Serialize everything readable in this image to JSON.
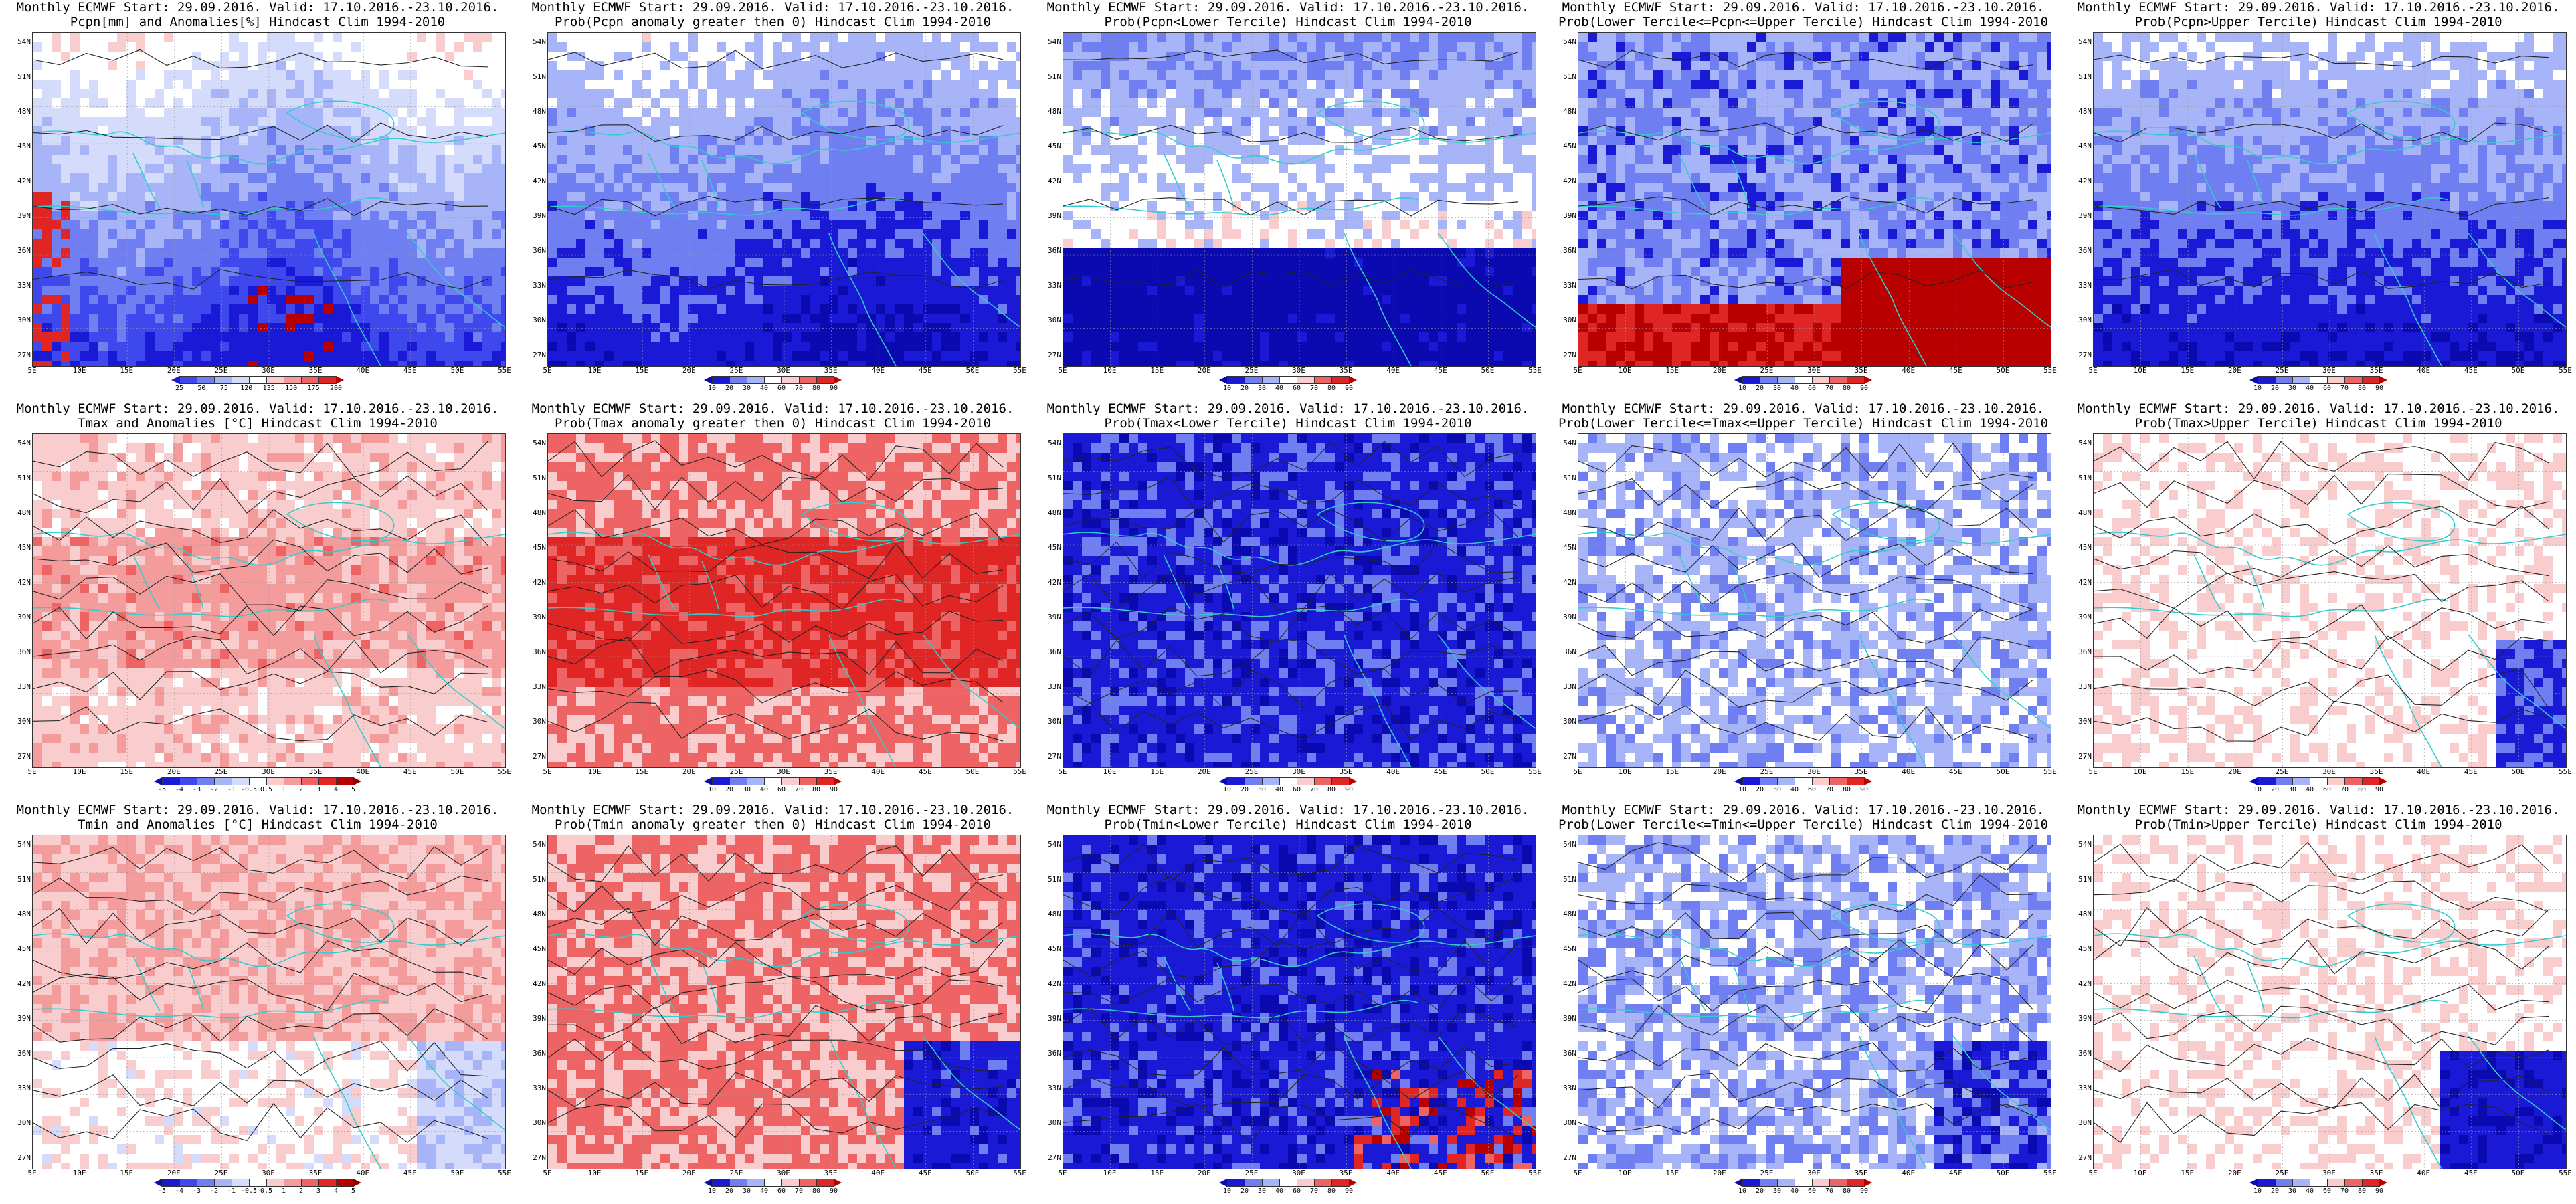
{
  "panels": [
    {
      "line1": "Monthly ECMWF Start: 29.09.2016. Valid: 17.10.2016.-23.10.2016.",
      "line2": "Pcpn[mm] and Anomalies[%] Hindcast Clim 1994-2010",
      "scale": "anom_pcpn",
      "pattern": "pcpn_anom"
    },
    {
      "line1": "Monthly ECMWF Start: 29.09.2016. Valid: 17.10.2016.-23.10.2016.",
      "line2": "Prob(Pcpn anomaly greater then 0) Hindcast Clim 1994-2010",
      "scale": "prob",
      "pattern": "pcpn_prob"
    },
    {
      "line1": "Monthly ECMWF Start: 29.09.2016. Valid: 17.10.2016.-23.10.2016.",
      "line2": "Prob(Pcpn<Lower Tercile) Hindcast Clim 1994-2010",
      "scale": "prob",
      "pattern": "pcpn_lower"
    },
    {
      "line1": "Monthly ECMWF Start: 29.09.2016. Valid: 17.10.2016.-23.10.2016.",
      "line2": "Prob(Lower Tercile<=Pcpn<=Upper Tercile) Hindcast Clim 1994-2010",
      "scale": "prob",
      "pattern": "pcpn_middle"
    },
    {
      "line1": "Monthly ECMWF Start: 29.09.2016. Valid: 17.10.2016.-23.10.2016.",
      "line2": "Prob(Pcpn>Upper Tercile) Hindcast Clim 1994-2010",
      "scale": "prob",
      "pattern": "pcpn_upper"
    },
    {
      "line1": "Monthly ECMWF Start: 29.09.2016. Valid: 17.10.2016.-23.10.2016.",
      "line2": "Tmax and Anomalies [°C] Hindcast Clim 1994-2010",
      "scale": "anom_t",
      "pattern": "t_anom"
    },
    {
      "line1": "Monthly ECMWF Start: 29.09.2016. Valid: 17.10.2016.-23.10.2016.",
      "line2": "Prob(Tmax anomaly greater then 0) Hindcast Clim 1994-2010",
      "scale": "prob",
      "pattern": "t_prob"
    },
    {
      "line1": "Monthly ECMWF Start: 29.09.2016. Valid: 17.10.2016.-23.10.2016.",
      "line2": "Prob(Tmax<Lower Tercile) Hindcast Clim 1994-2010",
      "scale": "prob",
      "pattern": "t_lower"
    },
    {
      "line1": "Monthly ECMWF Start: 29.09.2016. Valid: 17.10.2016.-23.10.2016.",
      "line2": "Prob(Lower Tercile<=Tmax<=Upper Tercile) Hindcast Clim 1994-2010",
      "scale": "prob",
      "pattern": "t_middle"
    },
    {
      "line1": "Monthly ECMWF Start: 29.09.2016. Valid: 17.10.2016.-23.10.2016.",
      "line2": "Prob(Tmax>Upper Tercile) Hindcast Clim 1994-2010",
      "scale": "prob",
      "pattern": "t_upper"
    },
    {
      "line1": "Monthly ECMWF Start: 29.09.2016. Valid: 17.10.2016.-23.10.2016.",
      "line2": "Tmin and Anomalies [°C] Hindcast Clim 1994-2010",
      "scale": "anom_t",
      "pattern": "tmin_anom"
    },
    {
      "line1": "Monthly ECMWF Start: 29.09.2016. Valid: 17.10.2016.-23.10.2016.",
      "line2": "Prob(Tmin anomaly greater then 0) Hindcast Clim 1994-2010",
      "scale": "prob",
      "pattern": "tmin_prob"
    },
    {
      "line1": "Monthly ECMWF Start: 29.09.2016. Valid: 17.10.2016.-23.10.2016.",
      "line2": "Prob(Tmin<Lower Tercile) Hindcast Clim 1994-2010",
      "scale": "prob",
      "pattern": "tmin_lower"
    },
    {
      "line1": "Monthly ECMWF Start: 29.09.2016. Valid: 17.10.2016.-23.10.2016.",
      "line2": "Prob(Lower Tercile<=Tmin<=Upper Tercile) Hindcast Clim 1994-2010",
      "scale": "prob",
      "pattern": "tmin_middle"
    },
    {
      "line1": "Monthly ECMWF Start: 29.09.2016. Valid: 17.10.2016.-23.10.2016.",
      "line2": "Prob(Tmin>Upper Tercile) Hindcast Clim 1994-2010",
      "scale": "prob",
      "pattern": "tmin_upper"
    }
  ],
  "lat_labels": [
    "54N",
    "51N",
    "48N",
    "45N",
    "42N",
    "39N",
    "36N",
    "33N",
    "30N",
    "27N"
  ],
  "lon_labels": [
    "5E",
    "10E",
    "15E",
    "20E",
    "25E",
    "30E",
    "35E",
    "40E",
    "45E",
    "50E",
    "55E"
  ],
  "scales": {
    "anom_pcpn": {
      "labels": [
        "25",
        "50",
        "75",
        "120",
        "135",
        "150",
        "175",
        "200"
      ],
      "colors": [
        "#1a1ad6",
        "#3f48ec",
        "#6f7ff2",
        "#a7b4f7",
        "#d5dcfb",
        "#ffffff",
        "#f9cdcd",
        "#f49b9b",
        "#ee6464",
        "#e02525",
        "#b80000"
      ]
    },
    "anom_t": {
      "labels": [
        "-5",
        "-4",
        "-3",
        "-2",
        "-1",
        "-0.5",
        "0.5",
        "1",
        "2",
        "3",
        "4",
        "5"
      ],
      "colors": [
        "#0a0ab0",
        "#1a1ad6",
        "#3f48ec",
        "#6f7ff2",
        "#a7b4f7",
        "#d5dcfb",
        "#ffffff",
        "#f9cdcd",
        "#f49b9b",
        "#ee6464",
        "#e02525",
        "#b80000",
        "#8a0000"
      ]
    },
    "prob": {
      "labels": [
        "10",
        "20",
        "30",
        "40",
        "60",
        "70",
        "80",
        "90"
      ],
      "colors": [
        "#0a0ab0",
        "#1a1ad6",
        "#6f7ff2",
        "#a7b4f7",
        "#ffffff",
        "#f9cdcd",
        "#ee6464",
        "#e02525",
        "#b80000"
      ]
    }
  },
  "colors": {
    "coast": "#33cccc",
    "contour": "#222222",
    "frame": "#333333"
  }
}
